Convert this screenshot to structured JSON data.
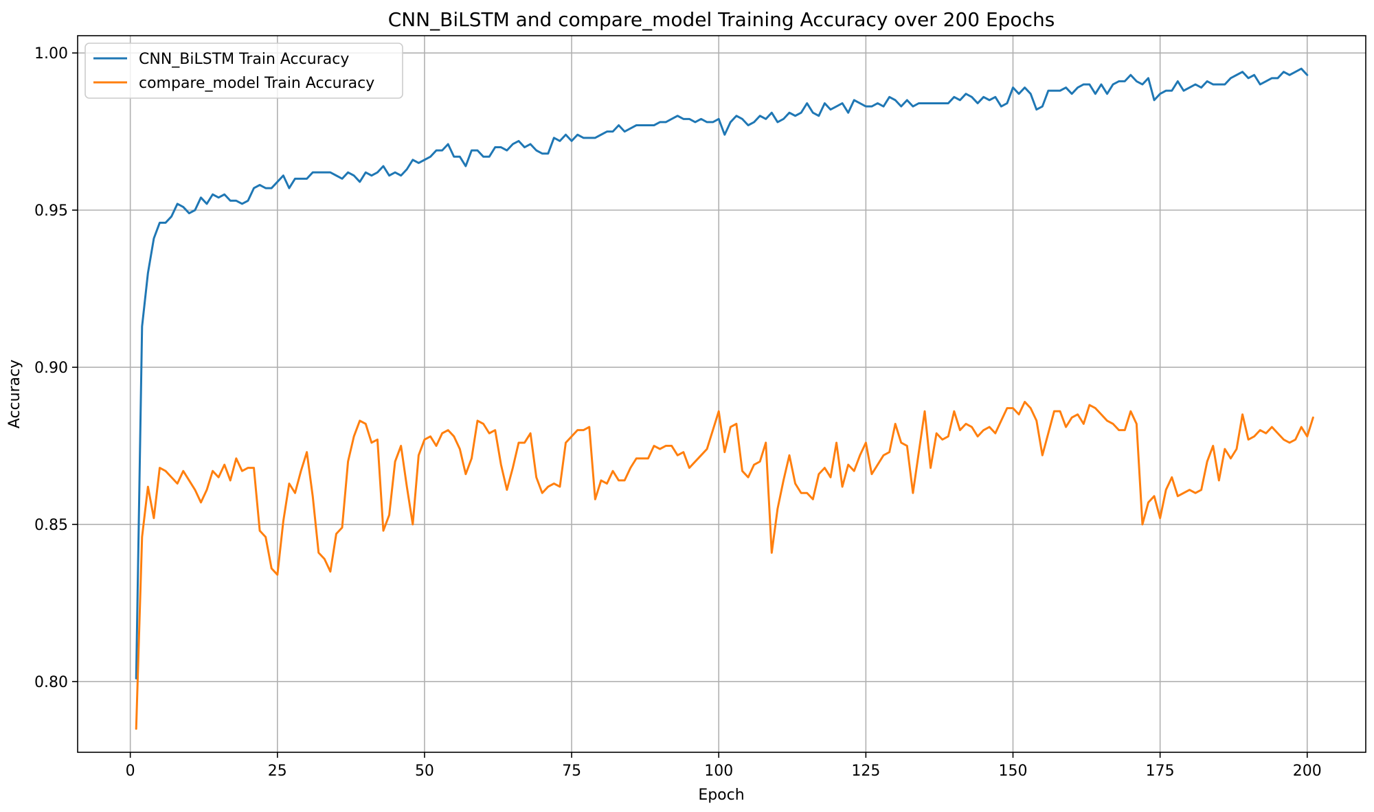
{
  "chart_data": {
    "type": "line",
    "title": "CNN_BiLSTM and compare_model Training Accuracy over 200 Epochs",
    "xlabel": "Epoch",
    "ylabel": "Accuracy",
    "xlim": [
      -8.95,
      209.95
    ],
    "ylim": [
      0.7775,
      1.0055
    ],
    "xticks": [
      0,
      25,
      50,
      75,
      100,
      125,
      150,
      175,
      200
    ],
    "xtick_labels": [
      "0",
      "25",
      "50",
      "75",
      "100",
      "125",
      "150",
      "175",
      "200"
    ],
    "yticks": [
      0.8,
      0.85,
      0.9,
      0.95,
      1.0
    ],
    "ytick_labels": [
      "0.80",
      "0.85",
      "0.90",
      "0.95",
      "1.00"
    ],
    "grid": true,
    "legend_position": "upper-left",
    "series": [
      {
        "name": "CNN_BiLSTM Train Accuracy",
        "color": "#1f77b4",
        "x_start": 1,
        "values": [
          0.801,
          0.913,
          0.93,
          0.941,
          0.946,
          0.946,
          0.948,
          0.952,
          0.951,
          0.949,
          0.95,
          0.954,
          0.952,
          0.955,
          0.954,
          0.955,
          0.953,
          0.953,
          0.952,
          0.953,
          0.957,
          0.958,
          0.957,
          0.957,
          0.959,
          0.961,
          0.957,
          0.96,
          0.96,
          0.96,
          0.962,
          0.962,
          0.962,
          0.962,
          0.961,
          0.96,
          0.962,
          0.961,
          0.959,
          0.962,
          0.961,
          0.962,
          0.964,
          0.961,
          0.962,
          0.961,
          0.963,
          0.966,
          0.965,
          0.966,
          0.967,
          0.969,
          0.969,
          0.971,
          0.967,
          0.967,
          0.964,
          0.969,
          0.969,
          0.967,
          0.967,
          0.97,
          0.97,
          0.969,
          0.971,
          0.972,
          0.97,
          0.971,
          0.969,
          0.968,
          0.968,
          0.973,
          0.972,
          0.974,
          0.972,
          0.974,
          0.973,
          0.973,
          0.973,
          0.974,
          0.975,
          0.975,
          0.977,
          0.975,
          0.976,
          0.977,
          0.977,
          0.977,
          0.977,
          0.978,
          0.978,
          0.979,
          0.98,
          0.979,
          0.979,
          0.978,
          0.979,
          0.978,
          0.978,
          0.979,
          0.974,
          0.978,
          0.98,
          0.979,
          0.977,
          0.978,
          0.98,
          0.979,
          0.981,
          0.978,
          0.979,
          0.981,
          0.98,
          0.981,
          0.984,
          0.981,
          0.98,
          0.984,
          0.982,
          0.983,
          0.984,
          0.981,
          0.985,
          0.984,
          0.983,
          0.983,
          0.984,
          0.983,
          0.986,
          0.985,
          0.983,
          0.985,
          0.983,
          0.984,
          0.984,
          0.984,
          0.984,
          0.984,
          0.984,
          0.986,
          0.985,
          0.987,
          0.986,
          0.984,
          0.986,
          0.985,
          0.986,
          0.983,
          0.984,
          0.989,
          0.987,
          0.989,
          0.987,
          0.982,
          0.983,
          0.988,
          0.988,
          0.988,
          0.989,
          0.987,
          0.989,
          0.99,
          0.99,
          0.987,
          0.99,
          0.987,
          0.99,
          0.991,
          0.991,
          0.993,
          0.991,
          0.99,
          0.992,
          0.985,
          0.987,
          0.988,
          0.988,
          0.991,
          0.988,
          0.989,
          0.99,
          0.989,
          0.991,
          0.99,
          0.99,
          0.99,
          0.992,
          0.993,
          0.994,
          0.992,
          0.993,
          0.99,
          0.991,
          0.992,
          0.992,
          0.994,
          0.993,
          0.994,
          0.995,
          0.993
        ]
      },
      {
        "name": "compare_model Train Accuracy",
        "color": "#ff7f0e",
        "x_start": 1,
        "values": [
          0.785,
          0.846,
          0.862,
          0.852,
          0.868,
          0.867,
          0.865,
          0.863,
          0.867,
          0.864,
          0.861,
          0.857,
          0.861,
          0.867,
          0.865,
          0.869,
          0.864,
          0.871,
          0.867,
          0.868,
          0.868,
          0.848,
          0.846,
          0.836,
          0.834,
          0.851,
          0.863,
          0.86,
          0.867,
          0.873,
          0.859,
          0.841,
          0.839,
          0.835,
          0.847,
          0.849,
          0.87,
          0.878,
          0.883,
          0.882,
          0.876,
          0.877,
          0.848,
          0.853,
          0.87,
          0.875,
          0.862,
          0.85,
          0.872,
          0.877,
          0.878,
          0.875,
          0.879,
          0.88,
          0.878,
          0.874,
          0.866,
          0.871,
          0.883,
          0.882,
          0.879,
          0.88,
          0.869,
          0.861,
          0.868,
          0.876,
          0.876,
          0.879,
          0.865,
          0.86,
          0.862,
          0.863,
          0.862,
          0.876,
          0.878,
          0.88,
          0.88,
          0.881,
          0.858,
          0.864,
          0.863,
          0.867,
          0.864,
          0.864,
          0.868,
          0.871,
          0.871,
          0.871,
          0.875,
          0.874,
          0.875,
          0.875,
          0.872,
          0.873,
          0.868,
          0.87,
          0.872,
          0.874,
          0.88,
          0.886,
          0.873,
          0.881,
          0.882,
          0.867,
          0.865,
          0.869,
          0.87,
          0.876,
          0.841,
          0.855,
          0.864,
          0.872,
          0.863,
          0.86,
          0.86,
          0.858,
          0.866,
          0.868,
          0.865,
          0.876,
          0.862,
          0.869,
          0.867,
          0.872,
          0.876,
          0.866,
          0.869,
          0.872,
          0.873,
          0.882,
          0.876,
          0.875,
          0.86,
          0.873,
          0.886,
          0.868,
          0.879,
          0.877,
          0.878,
          0.886,
          0.88,
          0.882,
          0.881,
          0.878,
          0.88,
          0.881,
          0.879,
          0.883,
          0.887,
          0.887,
          0.885,
          0.889,
          0.887,
          0.883,
          0.872,
          0.879,
          0.886,
          0.886,
          0.881,
          0.884,
          0.885,
          0.882,
          0.888,
          0.887,
          0.885,
          0.883,
          0.882,
          0.88,
          0.88,
          0.886,
          0.882,
          0.85,
          0.857,
          0.859,
          0.852,
          0.861,
          0.865,
          0.859,
          0.86,
          0.861,
          0.86,
          0.861,
          0.87,
          0.875,
          0.864,
          0.874,
          0.871,
          0.874,
          0.885,
          0.877,
          0.878,
          0.88,
          0.879,
          0.881,
          0.879,
          0.877,
          0.876,
          0.877,
          0.881,
          0.878,
          0.884
        ]
      }
    ]
  }
}
